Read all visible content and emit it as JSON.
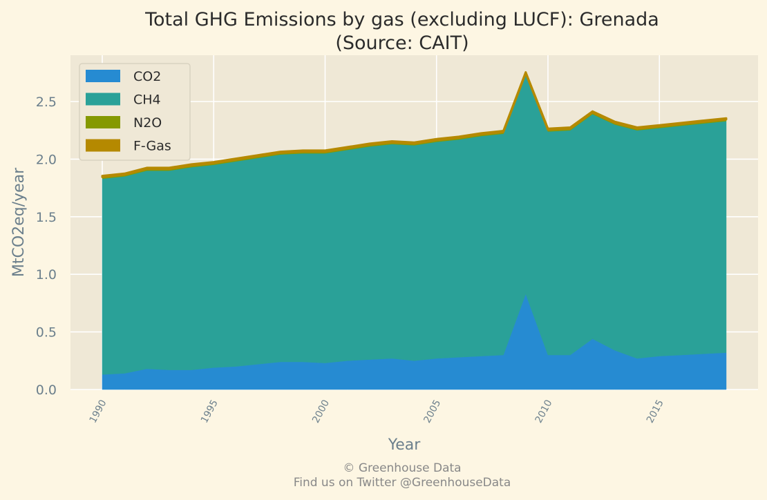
{
  "chart_data": {
    "type": "area",
    "title": "Total GHG Emissions by gas (excluding LUCF): Grenada",
    "subtitle": "(Source: CAIT)",
    "xlabel": "Year",
    "ylabel": "MtCO2eq/year",
    "x": [
      1990,
      1991,
      1992,
      1993,
      1994,
      1995,
      1996,
      1997,
      1998,
      1999,
      2000,
      2001,
      2002,
      2003,
      2004,
      2005,
      2006,
      2007,
      2008,
      2009,
      2010,
      2011,
      2012,
      2013,
      2014,
      2015,
      2016,
      2017,
      2018
    ],
    "xlim": [
      1990,
      2018
    ],
    "ylim": [
      0,
      2.9
    ],
    "xticks": [
      "1990",
      "1995",
      "2000",
      "2005",
      "2010",
      "2015"
    ],
    "yticks": [
      "0.0",
      "0.5",
      "1.0",
      "1.5",
      "2.0",
      "2.5"
    ],
    "stacked": true,
    "grid": true,
    "legend_position": "top-left",
    "series": [
      {
        "name": "CO2",
        "color": "#268bd2",
        "values": [
          0.13,
          0.14,
          0.18,
          0.17,
          0.17,
          0.19,
          0.2,
          0.22,
          0.24,
          0.24,
          0.23,
          0.25,
          0.26,
          0.27,
          0.25,
          0.27,
          0.28,
          0.29,
          0.3,
          0.83,
          0.3,
          0.3,
          0.44,
          0.34,
          0.27,
          0.29,
          0.3,
          0.31,
          0.32
        ]
      },
      {
        "name": "CH4",
        "color": "#2aa198",
        "values": [
          1.7,
          1.71,
          1.72,
          1.73,
          1.76,
          1.76,
          1.78,
          1.79,
          1.8,
          1.81,
          1.82,
          1.83,
          1.85,
          1.86,
          1.87,
          1.88,
          1.89,
          1.91,
          1.92,
          1.9,
          1.94,
          1.95,
          1.95,
          1.96,
          1.98,
          1.98,
          1.99,
          2.0,
          2.01
        ]
      },
      {
        "name": "N2O",
        "color": "#859900",
        "values": [
          0.015,
          0.015,
          0.015,
          0.015,
          0.015,
          0.015,
          0.015,
          0.015,
          0.015,
          0.015,
          0.015,
          0.015,
          0.015,
          0.015,
          0.015,
          0.015,
          0.015,
          0.015,
          0.015,
          0.015,
          0.015,
          0.015,
          0.015,
          0.015,
          0.015,
          0.015,
          0.015,
          0.015,
          0.015
        ]
      },
      {
        "name": "F-Gas",
        "color": "#b58900",
        "values": [
          0.01,
          0.01,
          0.01,
          0.01,
          0.01,
          0.01,
          0.01,
          0.01,
          0.01,
          0.01,
          0.01,
          0.01,
          0.01,
          0.01,
          0.01,
          0.01,
          0.01,
          0.01,
          0.01,
          0.01,
          0.01,
          0.01,
          0.01,
          0.01,
          0.01,
          0.01,
          0.01,
          0.01,
          0.01
        ]
      }
    ]
  },
  "footer": {
    "copyright": "© Greenhouse Data",
    "twitter": "Find us on Twitter @GreenhouseData"
  }
}
